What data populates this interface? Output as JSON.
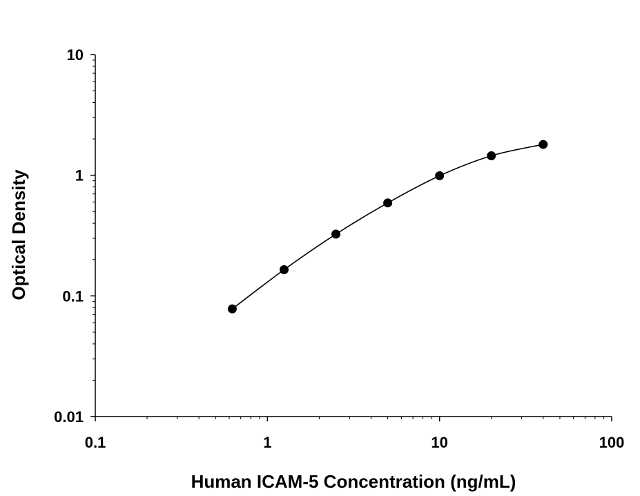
{
  "chart_data": {
    "type": "scatter",
    "title": "",
    "xlabel": "Human ICAM-5 Concentration (ng/mL)",
    "ylabel": "Optical Density",
    "x_scale": "log",
    "y_scale": "log",
    "xlim": [
      0.1,
      100
    ],
    "ylim": [
      0.01,
      10
    ],
    "x_tick_labels": [
      "0.1",
      "1",
      "10",
      "100"
    ],
    "y_tick_labels": [
      "0.01",
      "0.1",
      "1",
      "10"
    ],
    "grid": false,
    "legend": "none",
    "series": [
      {
        "x": [
          0.625,
          1.25,
          2.5,
          5,
          10,
          20,
          40
        ],
        "y": [
          0.078,
          0.165,
          0.325,
          0.59,
          0.99,
          1.45,
          1.8
        ],
        "marker_color": "#000000",
        "fit_curve": true
      }
    ]
  }
}
